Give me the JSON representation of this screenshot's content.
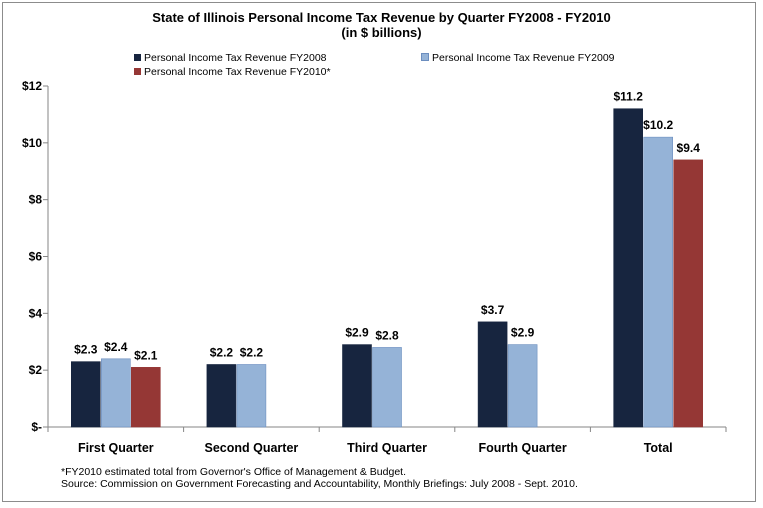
{
  "chart_data": {
    "type": "bar",
    "title": "State of Illinois Personal Income Tax Revenue by Quarter FY2008 - FY2010",
    "subtitle": "(in $ billions)",
    "categories": [
      "First Quarter",
      "Second Quarter",
      "Third Quarter",
      "Fourth Quarter",
      "Total"
    ],
    "series": [
      {
        "name": "Personal Income Tax Revenue FY2008",
        "color": "#17253f",
        "values": [
          2.3,
          2.2,
          2.9,
          3.7,
          11.2
        ],
        "labels": [
          "$2.3",
          "$2.2",
          "$2.9",
          "$3.7",
          "$11.2"
        ]
      },
      {
        "name": "Personal Income Tax Revenue FY2009",
        "color": "#95b3d7",
        "values": [
          2.4,
          2.2,
          2.8,
          2.9,
          10.2
        ],
        "labels": [
          "$2.4",
          "$2.2",
          "$2.8",
          "$2.9",
          "$10.2"
        ]
      },
      {
        "name": "Personal Income Tax Revenue FY2010*",
        "color": "#953735",
        "values": [
          2.1,
          null,
          null,
          null,
          9.4
        ],
        "labels": [
          "$2.1",
          "",
          "",
          "",
          "$9.4"
        ]
      }
    ],
    "ylim": [
      0,
      12
    ],
    "yticks": [
      0,
      2,
      4,
      6,
      8,
      10,
      12
    ],
    "ytick_labels": [
      "$-",
      "$2",
      "$4",
      "$6",
      "$8",
      "$10",
      "$12"
    ],
    "xlabel": "",
    "ylabel": "",
    "grid": false,
    "legend": "top"
  },
  "footnote": {
    "line1": "*FY2010 estimated total from Governor's Office of Management & Budget.",
    "line2": "Source: Commission on  Government Forecasting and Accountability, Monthly Briefings: July 2008 - Sept. 2010."
  }
}
